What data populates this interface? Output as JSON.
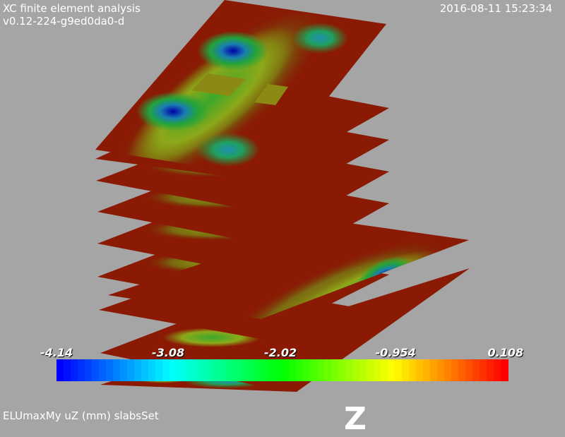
{
  "header": {
    "app_title": "XC finite element analysis",
    "version": "v0.12-224-g9ed0da0-d",
    "timestamp": "2016-08-11 15:23:34"
  },
  "footer": {
    "caption": "ELUmaxMy uZ (mm) slabsSet",
    "axis_letter": "Z"
  },
  "colorbar": {
    "ticks": [
      "-4.14",
      "-3.08",
      "-2.02",
      "-0.954",
      "0.108"
    ],
    "range": [
      -4.14,
      0.108
    ]
  },
  "chart_data": {
    "type": "heatmap",
    "layers": 9,
    "color_scale": [
      "#0000ff",
      "#00ffff",
      "#00ff00",
      "#ffff00",
      "#ff0000"
    ],
    "value_range": [
      -4.14,
      0.108
    ],
    "grid": false
  }
}
